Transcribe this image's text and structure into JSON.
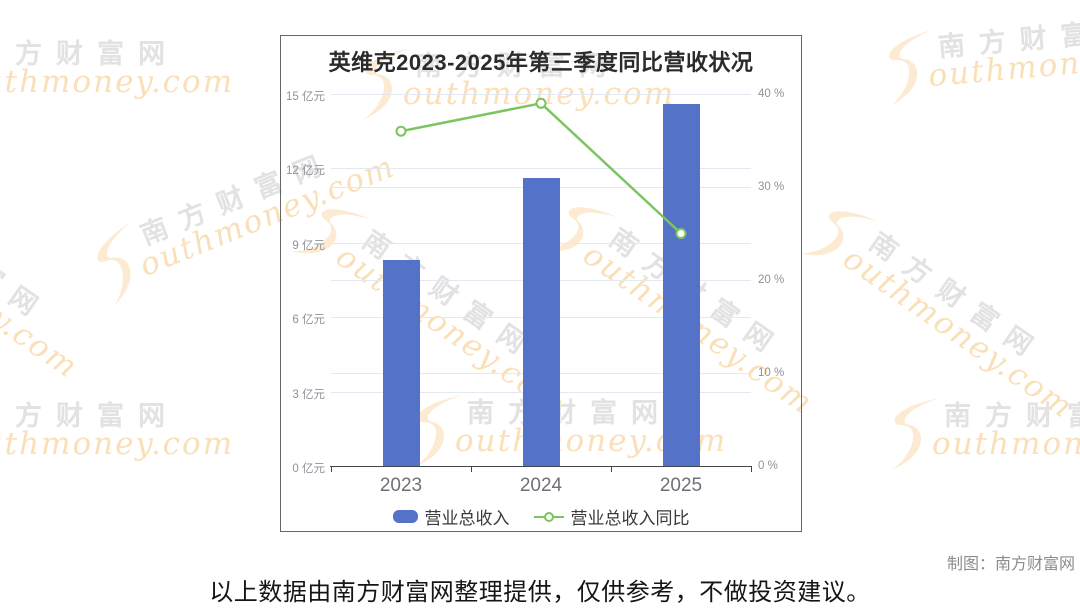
{
  "chart_data": {
    "type": "bar",
    "title": "英维克2023-2025年第三季度同比营收状况",
    "categories": [
      "2023",
      "2024",
      "2025"
    ],
    "series": [
      {
        "name": "营业总收入",
        "type": "bar",
        "yaxis": "left",
        "unit": "亿元",
        "values": [
          8.3,
          11.6,
          14.6
        ]
      },
      {
        "name": "营业总收入同比",
        "type": "line",
        "yaxis": "right",
        "unit": "%",
        "values": [
          36,
          39,
          25
        ]
      }
    ],
    "left_axis": {
      "ticks": [
        0,
        3,
        6,
        9,
        12,
        15
      ],
      "lim": [
        0,
        15
      ],
      "label_suffix": " 亿元"
    },
    "right_axis": {
      "ticks": [
        0,
        10,
        20,
        30,
        40
      ],
      "lim": [
        0,
        40
      ],
      "label_suffix": " %"
    },
    "grid": true,
    "legend_position": "bottom",
    "colors": {
      "bar": "#5472c8",
      "line": "#7cc45f",
      "marker_fill": "#ffffff"
    }
  },
  "footer": {
    "credit": "制图：南方财富网",
    "disclaimer": "以上数据由南方财富网整理提供，仅供参考，不做投资建议。"
  },
  "watermark": {
    "cn": "南方财富网",
    "en": "outhmoney.com",
    "swoosh_color": "#fcebd2",
    "cn_color": "#e2e2e2",
    "en_color": "#fae0b8"
  }
}
